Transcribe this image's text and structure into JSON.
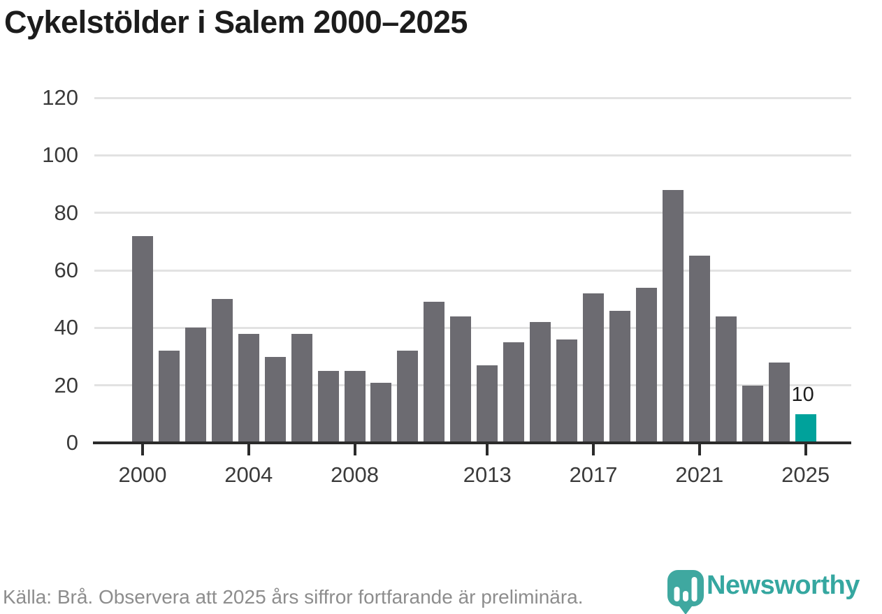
{
  "title": "Cykelstölder i Salem 2000–2025",
  "chart_data": {
    "type": "bar",
    "categories": [
      "2000",
      "2001",
      "2002",
      "2003",
      "2004",
      "2005",
      "2006",
      "2007",
      "2008",
      "2009",
      "2010",
      "2011",
      "2012",
      "2013",
      "2014",
      "2015",
      "2016",
      "2017",
      "2018",
      "2019",
      "2020",
      "2021",
      "2022",
      "2023",
      "2024",
      "2025"
    ],
    "values": [
      72,
      32,
      40,
      50,
      38,
      30,
      38,
      25,
      25,
      21,
      32,
      49,
      44,
      27,
      35,
      42,
      36,
      52,
      46,
      54,
      88,
      65,
      44,
      20,
      28,
      10
    ],
    "title": "Cykelstölder i Salem 2000–2025",
    "xlabel": "",
    "ylabel": "",
    "ylim": [
      0,
      120
    ],
    "yticks": [
      0,
      20,
      40,
      60,
      80,
      100,
      120
    ],
    "xtick_labels": [
      "2000",
      "2004",
      "2008",
      "2013",
      "2017",
      "2021",
      "2025"
    ],
    "grid": true,
    "legend_position": "none",
    "bar_color": "#6c6b71",
    "highlight_category": "2025",
    "highlight_color": "#00a29b",
    "annotations": [
      {
        "category": "2025",
        "label": "10"
      }
    ]
  },
  "footer": {
    "source_text": "Källa: Brå. Observera att 2025 års siffror fortfarande är preliminära."
  },
  "logo": {
    "wordmark": "Newsworthy",
    "icon": "speech-bubble-bar-chart-icon",
    "color": "#35a7a0"
  },
  "colors": {
    "title_text": "#1c1c1c",
    "axis": "#2b2b2b",
    "tick_label": "#3a3a3a",
    "gridline": "#e2e2e2",
    "source_text": "#8d8d8d"
  }
}
